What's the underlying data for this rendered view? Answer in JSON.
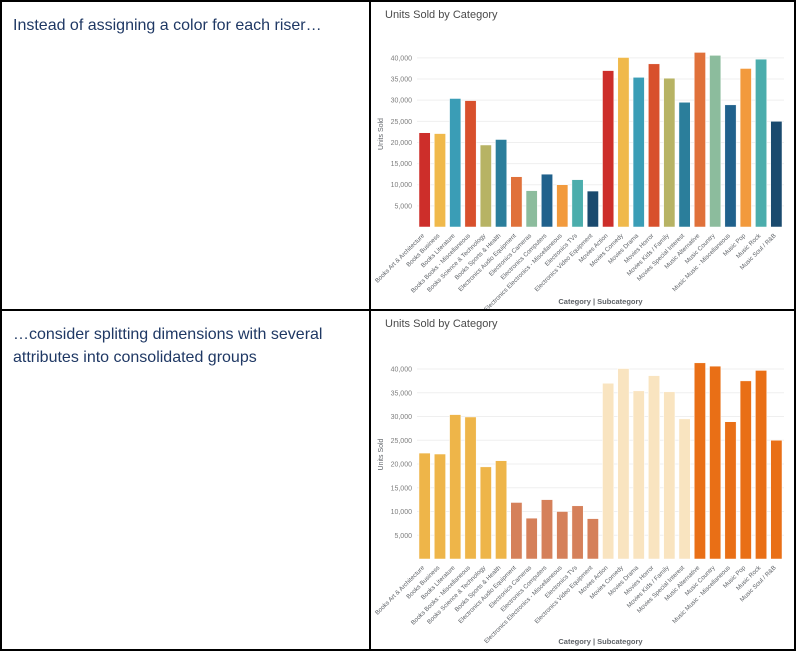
{
  "captions": {
    "top": "Instead of assigning a color for each riser…",
    "bottom": "…consider splitting dimensions with several attributes into consolidated groups",
    "text_color": "#1f3864"
  },
  "chart_data": [
    {
      "type": "bar",
      "title": "Units Sold by Category",
      "ylabel": "Units Sold",
      "xlabel": "Category | Subcategory",
      "ylim": [
        0,
        44000
      ],
      "yticks": [
        5000,
        10000,
        15000,
        20000,
        25000,
        30000,
        35000,
        40000
      ],
      "grid": true,
      "legend": "none",
      "coloring": "distinct color per riser, 12-color repeating palette",
      "categories": [
        "Books Art & Architecture",
        "Books Business",
        "Books Literature",
        "Books Books - Miscellaneous",
        "Books Science & Technology",
        "Books Sports & Health",
        "Electronics Audio Equipment",
        "Electronics Cameras",
        "Electronics Computers",
        "Electronics Electronics - Miscellaneous",
        "Electronics TVs",
        "Electronics Video Equipment",
        "Movies Action",
        "Movies Comedy",
        "Movies Drama",
        "Movies Horror",
        "Movies Kids / Family",
        "Movies Special Interest",
        "Music Alternative",
        "Music Country",
        "Music Music - Miscellaneous",
        "Music Pop",
        "Music Rock",
        "Music Soul / R&B"
      ],
      "values": [
        22300,
        22100,
        30400,
        29900,
        19400,
        20700,
        11900,
        8600,
        12500,
        10000,
        11200,
        8500,
        37000,
        40100,
        35400,
        38600,
        35200,
        29500,
        41300,
        40600,
        28900,
        37500,
        39700,
        25000
      ],
      "bar_colors": [
        "#cd2e2a",
        "#f0b94b",
        "#3a9db6",
        "#d8502c",
        "#b7b364",
        "#2b7e9b",
        "#e0713a",
        "#8cbc9d",
        "#20618c",
        "#f29a3d",
        "#4badac",
        "#1a4a6e",
        "#cd2e2a",
        "#f0b94b",
        "#3a9db6",
        "#d8502c",
        "#b7b364",
        "#2b7e9b",
        "#e0713a",
        "#8cbc9d",
        "#20618c",
        "#f29a3d",
        "#4badac",
        "#1a4a6e"
      ]
    },
    {
      "type": "bar",
      "title": "Units Sold by Category",
      "ylabel": "Units Sold",
      "xlabel": "Category | Subcategory",
      "ylim": [
        0,
        44000
      ],
      "yticks": [
        5000,
        10000,
        15000,
        20000,
        25000,
        30000,
        35000,
        40000
      ],
      "grid": true,
      "legend": "none",
      "coloring": "consolidated color per category group",
      "group_colors": {
        "Books": "#eeb549",
        "Electronics": "#d5805a",
        "Movies": "#f9e4c0",
        "Music": "#e96f16"
      },
      "categories": [
        "Books Art & Architecture",
        "Books Business",
        "Books Literature",
        "Books Books - Miscellaneous",
        "Books Science & Technology",
        "Books Sports & Health",
        "Electronics Audio Equipment",
        "Electronics Cameras",
        "Electronics Computers",
        "Electronics Electronics - Miscellaneous",
        "Electronics TVs",
        "Electronics Video Equipment",
        "Movies Action",
        "Movies Comedy",
        "Movies Drama",
        "Movies Horror",
        "Movies Kids / Family",
        "Movies Special Interest",
        "Music Alternative",
        "Music Country",
        "Music Music - Miscellaneous",
        "Music Pop",
        "Music Rock",
        "Music Soul / R&B"
      ],
      "values": [
        22300,
        22100,
        30400,
        29900,
        19400,
        20700,
        11900,
        8600,
        12500,
        10000,
        11200,
        8500,
        37000,
        40100,
        35400,
        38600,
        35200,
        29500,
        41300,
        40600,
        28900,
        37500,
        39700,
        25000
      ],
      "bar_colors": [
        "#eeb549",
        "#eeb549",
        "#eeb549",
        "#eeb549",
        "#eeb549",
        "#eeb549",
        "#d5805a",
        "#d5805a",
        "#d5805a",
        "#d5805a",
        "#d5805a",
        "#d5805a",
        "#f9e4c0",
        "#f9e4c0",
        "#f9e4c0",
        "#f9e4c0",
        "#f9e4c0",
        "#f9e4c0",
        "#e96f16",
        "#e96f16",
        "#e96f16",
        "#e96f16",
        "#e96f16",
        "#e96f16"
      ]
    }
  ]
}
